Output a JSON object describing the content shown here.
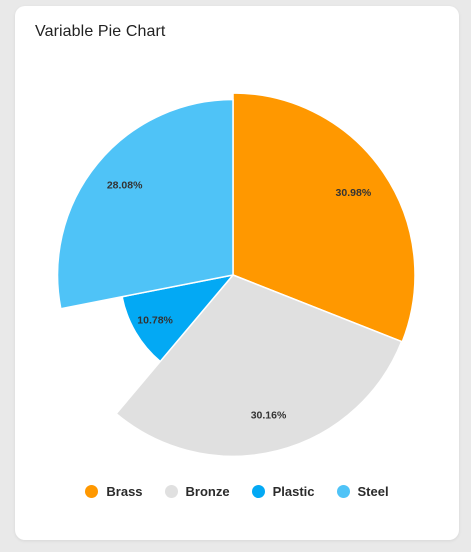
{
  "card": {
    "title": "Variable Pie Chart"
  },
  "chart_data": {
    "type": "pie",
    "variant": "variable-radius",
    "title": "Variable Pie Chart",
    "categories": [
      "Brass",
      "Bronze",
      "Plastic",
      "Steel"
    ],
    "values": [
      30.98,
      30.16,
      10.78,
      28.08
    ],
    "labels": [
      "30.98%",
      "30.16%",
      "10.78%",
      "28.08%"
    ],
    "relative_radius": [
      1.0,
      0.996,
      0.621,
      0.964
    ],
    "colors": [
      "#ff9800",
      "#e0e0e0",
      "#03a9f4",
      "#4fc3f7"
    ],
    "legend_position": "bottom"
  },
  "legend": {
    "items": [
      {
        "label": "Brass",
        "color": "#ff9800"
      },
      {
        "label": "Bronze",
        "color": "#e0e0e0"
      },
      {
        "label": "Plastic",
        "color": "#03a9f4"
      },
      {
        "label": "Steel",
        "color": "#4fc3f7"
      }
    ]
  }
}
